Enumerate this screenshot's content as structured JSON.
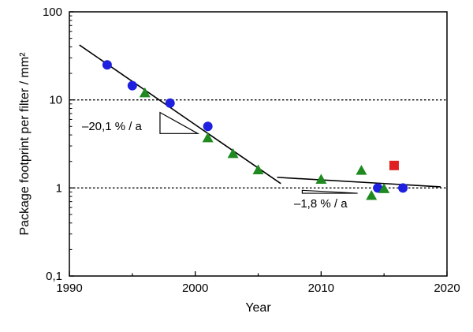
{
  "chart_data": {
    "type": "scatter",
    "title": "",
    "xlabel": "Year",
    "ylabel": "Package footprint per filter / mm²",
    "xlim": [
      1990,
      2020
    ],
    "ylim": [
      0.1,
      100
    ],
    "y_scale": "log",
    "x_ticks": [
      "1990",
      "2000",
      "2010",
      "2020"
    ],
    "y_ticks": [
      "0,1",
      "1",
      "10",
      "100"
    ],
    "gridlines_y": [
      1,
      10
    ],
    "series": [
      {
        "marker": "circle",
        "color": "#1f1fe0",
        "points": [
          {
            "x": 1993,
            "y": 25
          },
          {
            "x": 1995,
            "y": 14.5
          },
          {
            "x": 1998,
            "y": 9.2
          },
          {
            "x": 2001,
            "y": 5.0
          },
          {
            "x": 2014.5,
            "y": 1.0
          },
          {
            "x": 2016.5,
            "y": 1.0
          }
        ]
      },
      {
        "marker": "triangle",
        "color": "#1f8a1f",
        "points": [
          {
            "x": 1996,
            "y": 12.0
          },
          {
            "x": 2001,
            "y": 3.7
          },
          {
            "x": 2003,
            "y": 2.45
          },
          {
            "x": 2005,
            "y": 1.6
          },
          {
            "x": 2010,
            "y": 1.25
          },
          {
            "x": 2013.2,
            "y": 1.58
          },
          {
            "x": 2014,
            "y": 0.82
          },
          {
            "x": 2015,
            "y": 0.98
          }
        ]
      },
      {
        "marker": "square",
        "color": "#e02020",
        "points": [
          {
            "x": 2015.8,
            "y": 1.8
          }
        ]
      }
    ],
    "trend_lines": [
      {
        "x1": 1990.8,
        "y1": 42,
        "x2": 2006.8,
        "y2": 1.12,
        "label": "–20,1 % / a"
      },
      {
        "x1": 2006.5,
        "y1": 1.32,
        "x2": 2019.5,
        "y2": 1.03,
        "label": "–1,8 % / a"
      }
    ]
  }
}
